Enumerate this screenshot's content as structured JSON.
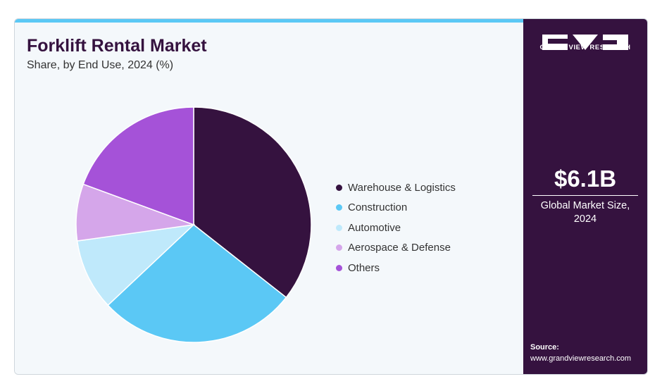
{
  "header": {
    "title": "Forklift Rental Market",
    "subtitle": "Share, by End Use, 2024 (%)"
  },
  "brand": {
    "name": "GRAND VIEW RESEARCH",
    "logo_icon": "gvr-logo-icon"
  },
  "summary": {
    "value": "$6.1B",
    "label_line1": "Global Market Size,",
    "label_line2": "2024"
  },
  "source": {
    "label": "Source:",
    "url": "www.grandviewresearch.com"
  },
  "colors": {
    "accent_bar": "#5bc8f5",
    "side_panel": "#35123f",
    "title": "#35123f"
  },
  "chart_data": {
    "type": "pie",
    "title": "Forklift Rental Market",
    "subtitle": "Share, by End Use, 2024 (%)",
    "legend_position": "right",
    "categories": [
      "Warehouse & Logistics",
      "Construction",
      "Automotive",
      "Aerospace & Defense",
      "Others"
    ],
    "values": [
      35.6,
      27.4,
      9.8,
      7.8,
      19.4
    ],
    "colors": [
      "#35123f",
      "#5bc8f5",
      "#bfe9fb",
      "#d5a6ea",
      "#a552d8"
    ]
  }
}
